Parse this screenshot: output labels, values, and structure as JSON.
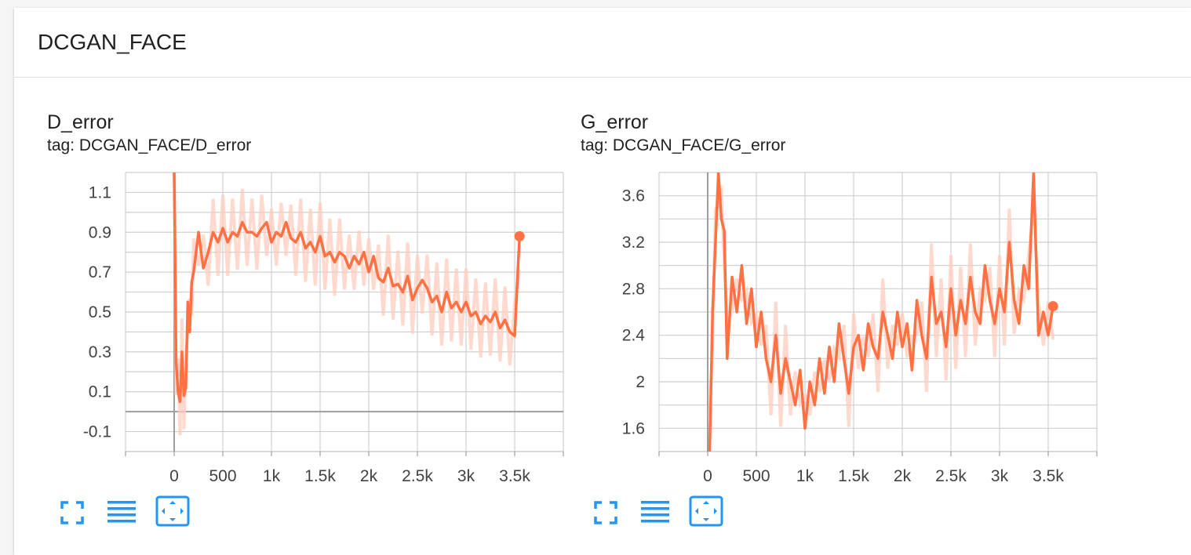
{
  "group": {
    "title": "DCGAN_FACE"
  },
  "colors": {
    "line": "#ff7043",
    "raw": "#ffccbc",
    "grid": "#cfcfcf",
    "axis": "#9e9e9e",
    "icon": "#2196f3"
  },
  "icons": {
    "fullscreen": "fullscreen-icon",
    "log_scale": "log-scale-icon",
    "fit_domain": "fit-domain-icon"
  },
  "chart_data": [
    {
      "type": "line",
      "title": "D_error",
      "subtitle": "tag: DCGAN_FACE/D_error",
      "xlim": [
        -500,
        4000
      ],
      "ylim": [
        -0.2,
        1.2
      ],
      "x_ticks": [
        0,
        500,
        1000,
        1500,
        2000,
        2500,
        3000,
        3500
      ],
      "x_tick_labels": [
        "0",
        "500",
        "1k",
        "1.5k",
        "2k",
        "2.5k",
        "3k",
        "3.5k"
      ],
      "y_ticks": [
        -0.1,
        0.1,
        0.3,
        0.5,
        0.7,
        0.9,
        1.1
      ],
      "y_tick_labels": [
        "-0.1",
        "0.1",
        "0.3",
        "0.5",
        "0.7",
        "0.9",
        "1.1"
      ],
      "grid": true,
      "series": [
        {
          "x": [
            0,
            20,
            40,
            60,
            80,
            100,
            120,
            140,
            160,
            180,
            200,
            250,
            300,
            350,
            400,
            450,
            500,
            550,
            600,
            650,
            700,
            750,
            800,
            850,
            900,
            950,
            1000,
            1050,
            1100,
            1150,
            1200,
            1250,
            1300,
            1350,
            1400,
            1450,
            1500,
            1550,
            1600,
            1650,
            1700,
            1750,
            1800,
            1850,
            1900,
            1950,
            2000,
            2050,
            2100,
            2150,
            2200,
            2250,
            2300,
            2350,
            2400,
            2450,
            2500,
            2550,
            2600,
            2650,
            2700,
            2750,
            2800,
            2850,
            2900,
            2950,
            3000,
            3050,
            3100,
            3150,
            3200,
            3250,
            3300,
            3350,
            3400,
            3450,
            3500,
            3550
          ],
          "y": [
            1.2,
            0.25,
            0.1,
            0.05,
            0.3,
            0.08,
            0.12,
            0.55,
            0.4,
            0.65,
            0.7,
            0.9,
            0.72,
            0.8,
            0.9,
            0.85,
            0.92,
            0.85,
            0.9,
            0.88,
            0.95,
            0.9,
            0.9,
            0.88,
            0.92,
            0.95,
            0.85,
            0.9,
            0.88,
            0.95,
            0.87,
            0.85,
            0.9,
            0.82,
            0.85,
            0.8,
            0.88,
            0.78,
            0.8,
            0.75,
            0.8,
            0.78,
            0.72,
            0.78,
            0.74,
            0.8,
            0.7,
            0.78,
            0.67,
            0.65,
            0.72,
            0.63,
            0.64,
            0.6,
            0.68,
            0.56,
            0.62,
            0.66,
            0.62,
            0.55,
            0.58,
            0.5,
            0.6,
            0.52,
            0.55,
            0.5,
            0.55,
            0.48,
            0.5,
            0.44,
            0.48,
            0.45,
            0.5,
            0.42,
            0.46,
            0.4,
            0.38,
            0.88
          ]
        }
      ]
    },
    {
      "type": "line",
      "title": "G_error",
      "subtitle": "tag: DCGAN_FACE/G_error",
      "xlim": [
        -500,
        4000
      ],
      "ylim": [
        1.4,
        3.8
      ],
      "x_ticks": [
        0,
        500,
        1000,
        1500,
        2000,
        2500,
        3000,
        3500
      ],
      "x_tick_labels": [
        "0",
        "500",
        "1k",
        "1.5k",
        "2k",
        "2.5k",
        "3k",
        "3.5k"
      ],
      "y_ticks": [
        1.6,
        2,
        2.4,
        2.8,
        3.2,
        3.6
      ],
      "y_tick_labels": [
        "1.6",
        "2",
        "2.4",
        "2.8",
        "3.2",
        "3.6"
      ],
      "grid": true,
      "series": [
        {
          "x": [
            20,
            50,
            80,
            110,
            140,
            170,
            200,
            250,
            300,
            350,
            400,
            450,
            500,
            550,
            600,
            650,
            700,
            750,
            800,
            850,
            900,
            950,
            1000,
            1050,
            1100,
            1150,
            1200,
            1250,
            1300,
            1350,
            1400,
            1450,
            1500,
            1550,
            1600,
            1650,
            1700,
            1750,
            1800,
            1850,
            1900,
            1950,
            2000,
            2050,
            2100,
            2150,
            2200,
            2250,
            2300,
            2350,
            2400,
            2450,
            2500,
            2550,
            2600,
            2650,
            2700,
            2750,
            2800,
            2850,
            2900,
            2950,
            3000,
            3050,
            3100,
            3150,
            3200,
            3250,
            3300,
            3350,
            3400,
            3450,
            3500,
            3550
          ],
          "y": [
            1.4,
            2.6,
            3.2,
            3.8,
            3.4,
            3.3,
            2.2,
            2.9,
            2.6,
            3.0,
            2.5,
            2.8,
            2.3,
            2.6,
            2.2,
            2.0,
            2.4,
            1.9,
            2.2,
            2.0,
            1.8,
            2.1,
            1.6,
            2.0,
            1.8,
            2.2,
            1.9,
            2.3,
            2.0,
            2.5,
            2.2,
            1.9,
            2.3,
            2.4,
            2.1,
            2.5,
            2.3,
            2.2,
            2.6,
            2.4,
            2.2,
            2.6,
            2.3,
            2.5,
            2.1,
            2.7,
            2.4,
            2.2,
            2.9,
            2.5,
            2.6,
            2.3,
            2.8,
            2.4,
            2.7,
            2.5,
            2.9,
            2.6,
            2.5,
            3.0,
            2.7,
            2.5,
            2.8,
            2.6,
            3.2,
            2.7,
            2.5,
            3.0,
            2.8,
            3.8,
            2.4,
            2.6,
            2.4,
            2.65
          ]
        }
      ]
    }
  ]
}
